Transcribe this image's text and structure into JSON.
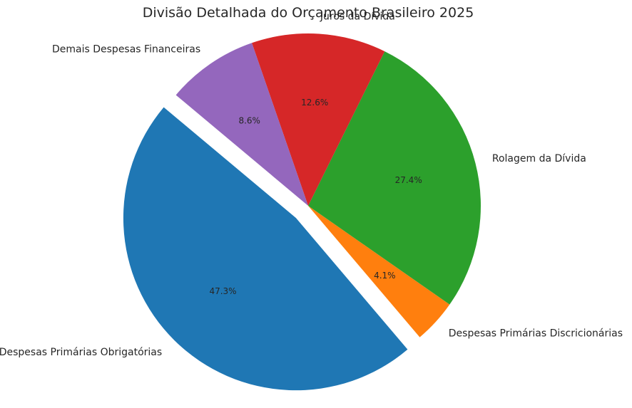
{
  "chart_data": {
    "type": "pie",
    "title": "Divisão Detalhada do Orçamento Brasileiro 2025",
    "slices": [
      {
        "label": "Despesas Primárias Obrigatórias",
        "value": 47.3,
        "pct_label": "47.3%",
        "color": "#1f77b4",
        "exploded": true
      },
      {
        "label": "Despesas Primárias Discricionárias",
        "value": 4.1,
        "pct_label": "4.1%",
        "color": "#ff7f0e",
        "exploded": false
      },
      {
        "label": "Rolagem da Dívida",
        "value": 27.4,
        "pct_label": "27.4%",
        "color": "#2ca02c",
        "exploded": false
      },
      {
        "label": "Juros da Dívida",
        "value": 12.6,
        "pct_label": "12.6%",
        "color": "#d62728",
        "exploded": false
      },
      {
        "label": "Demais Despesas Financeiras",
        "value": 8.6,
        "pct_label": "8.6%",
        "color": "#9467bd",
        "exploded": false
      }
    ]
  }
}
